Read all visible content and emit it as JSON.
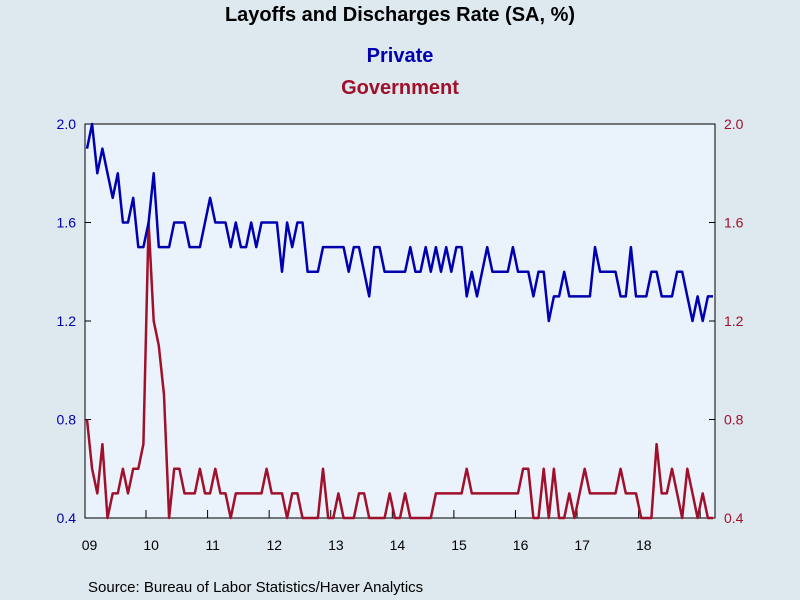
{
  "chart_data": {
    "type": "line",
    "title": "Layoffs and Discharges Rate (SA, %)",
    "source": "Source:  Bureau of Labor Statistics/Haver Analytics",
    "start": "2009-01",
    "x_tick_labels": [
      "09",
      "10",
      "11",
      "12",
      "13",
      "14",
      "15",
      "16",
      "17",
      "18"
    ],
    "y_left": {
      "ylim": [
        0.4,
        2.0
      ],
      "ticks": [
        "0.4",
        "0.8",
        "1.2",
        "1.6",
        "2.0"
      ]
    },
    "y_right": {
      "ylim": [
        0.4,
        2.0
      ],
      "ticks": [
        "0.4",
        "0.8",
        "1.2",
        "1.6",
        "2.0"
      ]
    },
    "grid": false,
    "legend": "top-center",
    "colors": {
      "private": "#0000b0",
      "government": "#a0102a",
      "plot_bg": "#eaf2fb",
      "page_bg": "#dde8ef"
    },
    "series": [
      {
        "name": "Private",
        "values": [
          1.9,
          2.0,
          1.8,
          1.9,
          1.8,
          1.7,
          1.8,
          1.6,
          1.6,
          1.7,
          1.5,
          1.5,
          1.6,
          1.8,
          1.5,
          1.5,
          1.5,
          1.6,
          1.6,
          1.6,
          1.5,
          1.5,
          1.5,
          1.6,
          1.7,
          1.6,
          1.6,
          1.6,
          1.5,
          1.6,
          1.5,
          1.5,
          1.6,
          1.5,
          1.6,
          1.6,
          1.6,
          1.6,
          1.4,
          1.6,
          1.5,
          1.6,
          1.6,
          1.4,
          1.4,
          1.4,
          1.5,
          1.5,
          1.5,
          1.5,
          1.5,
          1.4,
          1.5,
          1.5,
          1.4,
          1.3,
          1.5,
          1.5,
          1.4,
          1.4,
          1.4,
          1.4,
          1.4,
          1.5,
          1.4,
          1.4,
          1.5,
          1.4,
          1.5,
          1.4,
          1.5,
          1.4,
          1.5,
          1.5,
          1.3,
          1.4,
          1.3,
          1.4,
          1.5,
          1.4,
          1.4,
          1.4,
          1.4,
          1.5,
          1.4,
          1.4,
          1.4,
          1.3,
          1.4,
          1.4,
          1.2,
          1.3,
          1.3,
          1.4,
          1.3,
          1.3,
          1.3,
          1.3,
          1.3,
          1.5,
          1.4,
          1.4,
          1.4,
          1.4,
          1.3,
          1.3,
          1.5,
          1.3,
          1.3,
          1.3,
          1.4,
          1.4,
          1.3,
          1.3,
          1.3,
          1.4,
          1.4,
          1.3,
          1.2,
          1.3,
          1.2,
          1.3,
          1.3
        ]
      },
      {
        "name": "Government",
        "values": [
          0.8,
          0.6,
          0.5,
          0.7,
          0.4,
          0.5,
          0.5,
          0.6,
          0.5,
          0.6,
          0.6,
          0.7,
          1.6,
          1.2,
          1.1,
          0.9,
          0.4,
          0.6,
          0.6,
          0.5,
          0.5,
          0.5,
          0.6,
          0.5,
          0.5,
          0.6,
          0.5,
          0.5,
          0.4,
          0.5,
          0.5,
          0.5,
          0.5,
          0.5,
          0.5,
          0.6,
          0.5,
          0.5,
          0.5,
          0.4,
          0.5,
          0.5,
          0.4,
          0.4,
          0.4,
          0.4,
          0.6,
          0.4,
          0.4,
          0.5,
          0.4,
          0.4,
          0.4,
          0.5,
          0.5,
          0.4,
          0.4,
          0.4,
          0.4,
          0.5,
          0.4,
          0.4,
          0.5,
          0.4,
          0.4,
          0.4,
          0.4,
          0.4,
          0.5,
          0.5,
          0.5,
          0.5,
          0.5,
          0.5,
          0.6,
          0.5,
          0.5,
          0.5,
          0.5,
          0.5,
          0.5,
          0.5,
          0.5,
          0.5,
          0.5,
          0.6,
          0.6,
          0.4,
          0.4,
          0.6,
          0.4,
          0.6,
          0.4,
          0.4,
          0.5,
          0.4,
          0.5,
          0.6,
          0.5,
          0.5,
          0.5,
          0.5,
          0.5,
          0.5,
          0.6,
          0.5,
          0.5,
          0.5,
          0.4,
          0.4,
          0.4,
          0.7,
          0.5,
          0.5,
          0.6,
          0.5,
          0.4,
          0.6,
          0.5,
          0.4,
          0.5,
          0.4,
          0.4
        ]
      }
    ]
  }
}
